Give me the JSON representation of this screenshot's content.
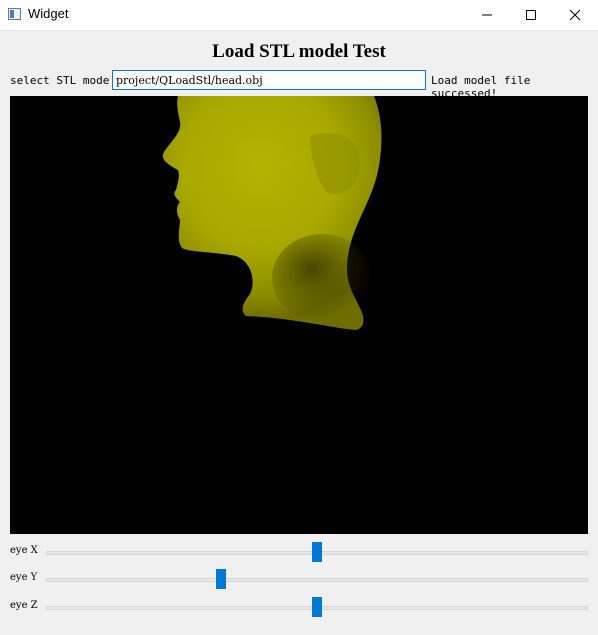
{
  "window": {
    "title": "Widget",
    "icon": "window-app-icon",
    "controls": [
      "minimize-icon",
      "maximize-icon",
      "close-icon"
    ]
  },
  "heading": "Load STL model Test",
  "file_row": {
    "label": "select STL mode:",
    "path_value": "project/QLoadStl/head.obj",
    "status": "Load model file successed!"
  },
  "viewport": {
    "background": "#000000",
    "model_color": "#a8a800",
    "model": "head"
  },
  "sliders": [
    {
      "label": "eye X",
      "value": 0.5
    },
    {
      "label": "eye Y",
      "value": 0.32
    },
    {
      "label": "eye Z",
      "value": 0.5
    }
  ],
  "colors": {
    "accent": "#0078d7",
    "window_bg": "#f0f0f0"
  }
}
